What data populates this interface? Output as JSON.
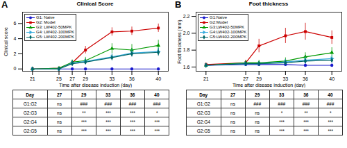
{
  "chart_data": [
    {
      "type": "line",
      "title": "Clinical Score",
      "xlabel": "Time after disease induction (day)",
      "ylabel": "Clinical score",
      "annotations": [
        "A"
      ],
      "xlim": [
        19.5,
        41.5
      ],
      "ylim": [
        -0.3,
        7.5
      ],
      "xticks": [
        21,
        25,
        27,
        29,
        33,
        36,
        40
      ],
      "yticks": [
        0,
        2,
        4,
        6
      ],
      "grid": false,
      "legend": "upper left",
      "series": [
        {
          "name": "G1: Naive",
          "color": "#1919CC",
          "marker": "circle",
          "x": [
            21,
            25,
            27,
            29,
            33,
            36,
            40
          ],
          "values": [
            0.0,
            0.0,
            0.0,
            0.0,
            0.0,
            0.0,
            0.0
          ],
          "yerr": [
            0.0,
            0.0,
            0.0,
            0.0,
            0.0,
            0.0,
            0.0
          ]
        },
        {
          "name": "G2: Model",
          "color": "#CC0000",
          "marker": "square",
          "x": [
            21,
            25,
            27,
            29,
            33,
            36,
            40
          ],
          "values": [
            0.0,
            0.1,
            0.8,
            2.5,
            4.9,
            5.0,
            5.4
          ],
          "yerr": [
            0.0,
            0.05,
            0.35,
            0.5,
            0.55,
            0.55,
            0.55
          ]
        },
        {
          "name": "G3: LW402-50MPK",
          "color": "#009900",
          "marker": "triangle-up",
          "x": [
            21,
            25,
            27,
            29,
            33,
            36,
            40
          ],
          "values": [
            0.0,
            0.1,
            0.9,
            1.1,
            2.7,
            2.5,
            3.1
          ],
          "yerr": [
            0.0,
            0.05,
            0.3,
            0.45,
            0.65,
            0.75,
            0.7
          ]
        },
        {
          "name": "G4: LW402-100MPK",
          "color": "#33AADD",
          "marker": "triangle-right",
          "x": [
            21,
            25,
            27,
            29,
            33,
            36,
            40
          ],
          "values": [
            0.0,
            0.0,
            0.8,
            1.0,
            1.6,
            2.1,
            2.3
          ],
          "yerr": [
            0.0,
            0.0,
            0.3,
            0.3,
            0.45,
            0.5,
            0.5
          ]
        },
        {
          "name": "G5: LW402-200MPK",
          "color": "#006666",
          "marker": "diamond",
          "x": [
            21,
            25,
            27,
            29,
            33,
            36,
            40
          ],
          "values": [
            0.0,
            0.0,
            0.7,
            0.9,
            1.5,
            2.0,
            2.2
          ],
          "yerr": [
            0.0,
            0.0,
            0.3,
            0.3,
            0.4,
            0.4,
            0.5
          ]
        }
      ],
      "table": {
        "header": [
          "Day",
          "27",
          "29",
          "33",
          "36",
          "40"
        ],
        "rows": [
          [
            "G1:G2",
            "ns",
            "###",
            "###",
            "###",
            "###"
          ],
          [
            "G2:G3",
            "ns",
            "**",
            "***",
            "***",
            "*"
          ],
          [
            "G2:G4",
            "ns",
            "***",
            "***",
            "***",
            "***"
          ],
          [
            "G2:G5",
            "ns",
            "***",
            "***",
            "***",
            "***"
          ]
        ]
      }
    },
    {
      "type": "line",
      "title": "Foot thickness",
      "xlabel": "Time after disease induction (day)",
      "ylabel": "Foot thickness (mm)",
      "annotations": [
        "B"
      ],
      "xlim": [
        19.5,
        41.5
      ],
      "ylim": [
        1.55,
        2.25
      ],
      "xticks": [
        21,
        27,
        29,
        33,
        36,
        40
      ],
      "yticks": [
        1.6,
        1.8,
        {
          "value": 2.0,
          "label": "2.0"
        },
        2.2
      ],
      "grid": false,
      "legend": "upper left",
      "series": [
        {
          "name": "G1:Naive",
          "color": "#1919CC",
          "marker": "circle",
          "x": [
            21,
            27,
            29,
            33,
            36,
            40
          ],
          "values": [
            1.62,
            1.63,
            1.63,
            1.63,
            1.62,
            1.62
          ],
          "yerr": [
            0.02,
            0.02,
            0.02,
            0.02,
            0.02,
            0.02
          ]
        },
        {
          "name": "G2:Model",
          "color": "#CC0000",
          "marker": "square",
          "x": [
            21,
            27,
            29,
            33,
            36,
            40
          ],
          "values": [
            1.63,
            1.65,
            1.85,
            1.97,
            2.02,
            1.95
          ],
          "yerr": [
            0.02,
            0.03,
            0.08,
            0.09,
            0.1,
            0.08
          ]
        },
        {
          "name": "G3:LW402-50MPK",
          "color": "#009900",
          "marker": "triangle-up",
          "x": [
            21,
            27,
            29,
            33,
            36,
            40
          ],
          "values": [
            1.62,
            1.65,
            1.65,
            1.67,
            1.72,
            1.77
          ],
          "yerr": [
            0.02,
            0.03,
            0.03,
            0.04,
            0.05,
            0.06
          ]
        },
        {
          "name": "G4:LW402-100MPK",
          "color": "#33AADD",
          "marker": "triangle-right",
          "x": [
            21,
            27,
            29,
            33,
            36,
            40
          ],
          "values": [
            1.62,
            1.64,
            1.64,
            1.66,
            1.68,
            1.7
          ],
          "yerr": [
            0.02,
            0.02,
            0.02,
            0.03,
            0.04,
            0.04
          ]
        },
        {
          "name": "G5:LW402-200MPK",
          "color": "#006666",
          "marker": "diamond",
          "x": [
            21,
            27,
            29,
            33,
            36,
            40
          ],
          "values": [
            1.62,
            1.64,
            1.64,
            1.65,
            1.67,
            1.68
          ],
          "yerr": [
            0.02,
            0.02,
            0.02,
            0.03,
            0.03,
            0.03
          ]
        }
      ],
      "table": {
        "header": [
          "Day",
          "27",
          "29",
          "33",
          "36",
          "40"
        ],
        "rows": [
          [
            "G1:G2",
            "ns",
            "###",
            "###",
            "###",
            "###"
          ],
          [
            "G2:G3",
            "ns",
            "ns",
            "*",
            "**",
            "*"
          ],
          [
            "G2:G4",
            "ns",
            "ns",
            "***",
            "***",
            "***"
          ],
          [
            "G2:G5",
            "ns",
            "ns",
            "***",
            "***",
            "***"
          ]
        ]
      }
    }
  ]
}
